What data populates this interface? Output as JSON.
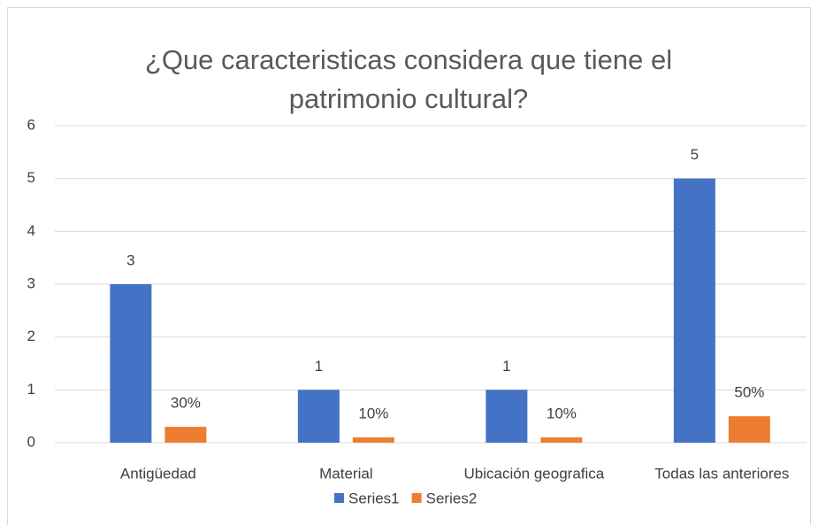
{
  "chart_data": {
    "type": "bar",
    "title": "¿Que caracteristicas considera que tiene el patrimonio cultural?",
    "categories": [
      "Antigüedad",
      "Material",
      "Ubicación geografica",
      "Todas las anteriores"
    ],
    "series": [
      {
        "name": "Series1",
        "color": "#4472c4",
        "values": [
          3,
          1,
          1,
          5
        ],
        "value_labels": [
          "3",
          "1",
          "1",
          "5"
        ]
      },
      {
        "name": "Series2",
        "color": "#ed7d31",
        "values": [
          0.3,
          0.1,
          0.1,
          0.5
        ],
        "value_labels": [
          "30%",
          "10%",
          "10%",
          "50%"
        ]
      }
    ],
    "ylim": [
      0,
      6
    ],
    "yticks": [
      0,
      1,
      2,
      3,
      4,
      5,
      6
    ],
    "grid": true,
    "legend": "bottom"
  }
}
